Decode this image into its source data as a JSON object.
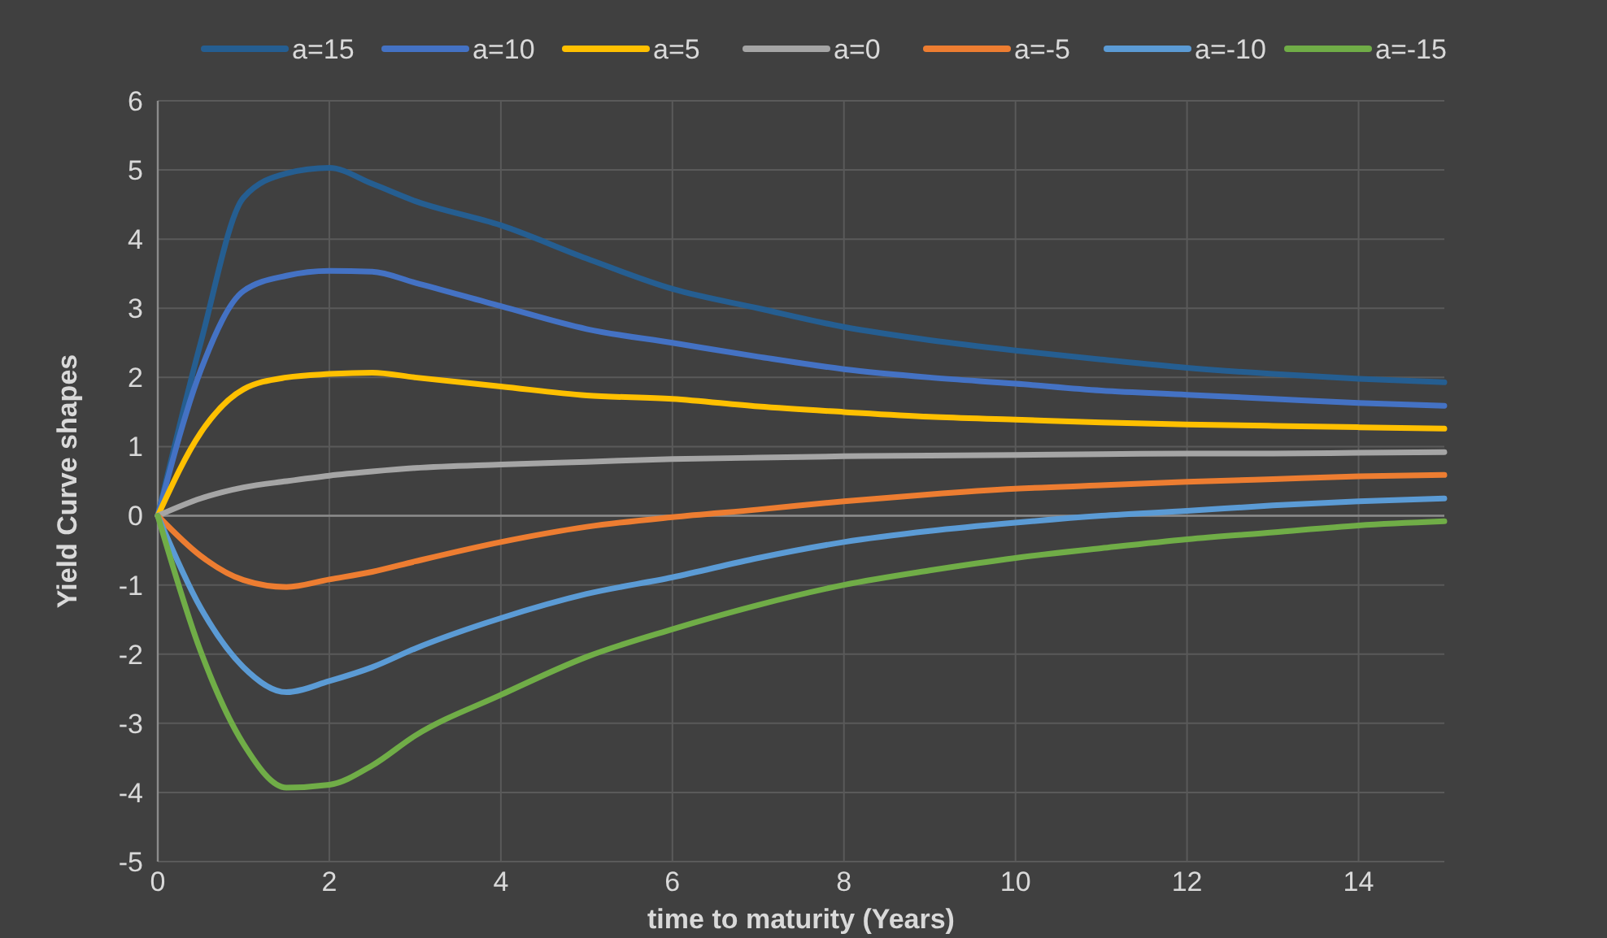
{
  "chart_data": {
    "type": "line",
    "xlabel": "time to maturity (Years)",
    "ylabel": "Yield Curve shapes",
    "x": [
      0,
      0.5,
      1,
      1.5,
      2,
      2.5,
      3,
      4,
      5,
      6,
      7,
      8,
      9,
      10,
      11,
      12,
      13,
      14,
      15
    ],
    "xlim": [
      0,
      15
    ],
    "xticks": [
      0,
      2,
      4,
      6,
      8,
      10,
      12,
      14
    ],
    "ylim": [
      -5,
      6
    ],
    "yticks": [
      -5,
      -4,
      -3,
      -2,
      -1,
      0,
      1,
      2,
      3,
      4,
      5,
      6
    ],
    "grid": true,
    "legend": "top",
    "marker": "none",
    "line_style": "solid",
    "series": [
      {
        "name": "a=15",
        "color": "#255e91",
        "values": [
          0,
          2.5,
          4.6,
          4.95,
          5.03,
          4.8,
          4.55,
          4.2,
          3.72,
          3.28,
          3.0,
          2.73,
          2.54,
          2.39,
          2.26,
          2.14,
          2.05,
          1.98,
          1.93
        ]
      },
      {
        "name": "a=10",
        "color": "#4472c4",
        "values": [
          0,
          2.1,
          3.25,
          3.47,
          3.54,
          3.53,
          3.37,
          3.03,
          2.7,
          2.5,
          2.3,
          2.12,
          2.0,
          1.91,
          1.81,
          1.75,
          1.69,
          1.63,
          1.59
        ]
      },
      {
        "name": "a=5",
        "color": "#ffc000",
        "values": [
          0,
          1.2,
          1.83,
          2.0,
          2.05,
          2.07,
          2.0,
          1.87,
          1.74,
          1.69,
          1.58,
          1.5,
          1.43,
          1.39,
          1.35,
          1.32,
          1.3,
          1.28,
          1.26
        ]
      },
      {
        "name": "a=0",
        "color": "#a5a5a5",
        "values": [
          0,
          0.25,
          0.41,
          0.5,
          0.58,
          0.64,
          0.69,
          0.74,
          0.78,
          0.82,
          0.84,
          0.86,
          0.87,
          0.88,
          0.89,
          0.9,
          0.9,
          0.91,
          0.92
        ]
      },
      {
        "name": "a=-5",
        "color": "#ed7d31",
        "values": [
          0,
          -0.58,
          -0.93,
          -1.03,
          -0.92,
          -0.81,
          -0.66,
          -0.38,
          -0.16,
          -0.02,
          0.09,
          0.21,
          0.31,
          0.39,
          0.44,
          0.49,
          0.53,
          0.57,
          0.59
        ]
      },
      {
        "name": "a=-10",
        "color": "#5b9bd5",
        "values": [
          0,
          -1.33,
          -2.19,
          -2.55,
          -2.39,
          -2.19,
          -1.92,
          -1.48,
          -1.13,
          -0.89,
          -0.61,
          -0.38,
          -0.22,
          -0.1,
          0,
          0.07,
          0.15,
          0.21,
          0.25
        ]
      },
      {
        "name": "a=-15",
        "color": "#70ad47",
        "values": [
          0,
          -1.96,
          -3.3,
          -3.93,
          -3.89,
          -3.61,
          -3.18,
          -2.59,
          -2.04,
          -1.64,
          -1.29,
          -1.0,
          -0.79,
          -0.61,
          -0.47,
          -0.34,
          -0.24,
          -0.14,
          -0.08
        ]
      }
    ]
  }
}
